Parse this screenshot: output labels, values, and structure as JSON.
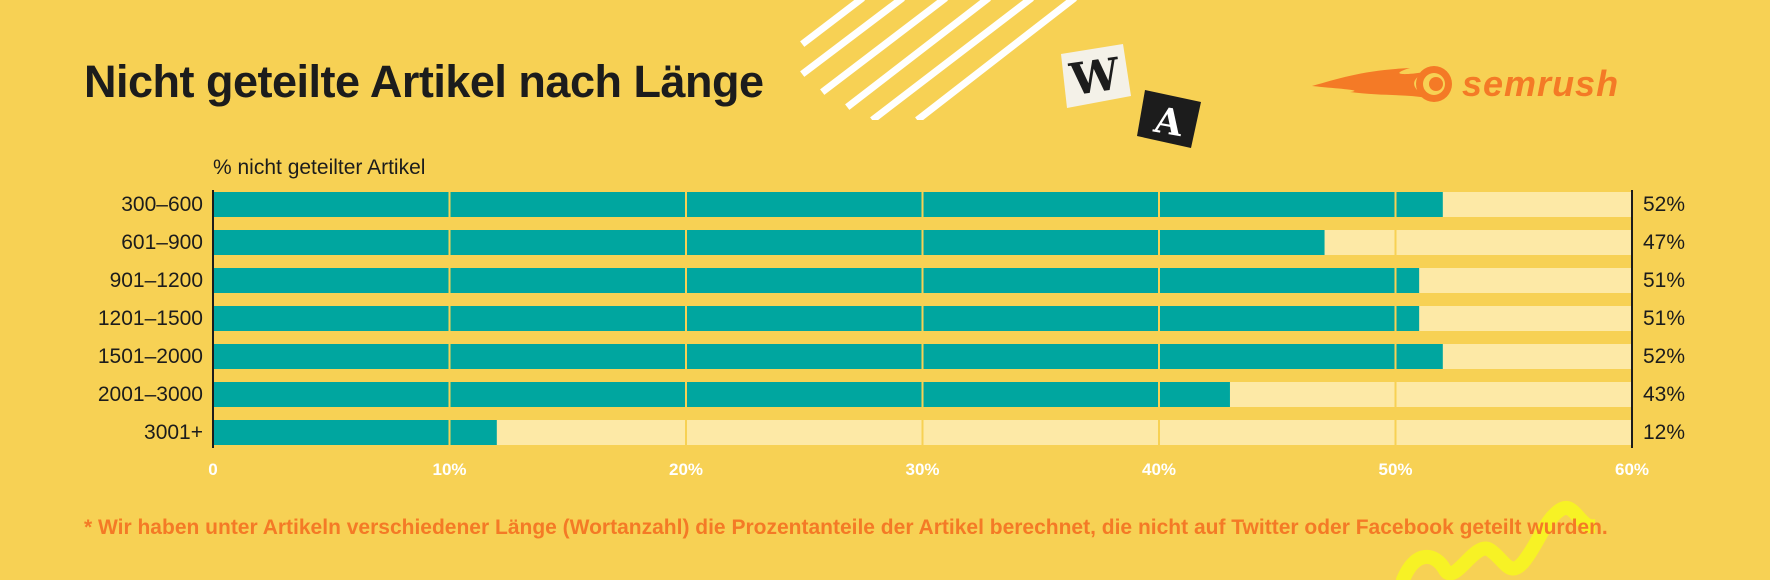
{
  "title": "Nicht geteilte Artikel nach Länge",
  "logo": {
    "text": "semrush",
    "icon": "fireball-icon"
  },
  "decor": {
    "tile_w_letter": "W",
    "tile_a_letter": "A"
  },
  "footnote": "* Wir haben unter Artikeln verschiedener Länge (Wortanzahl) die Prozentanteile der Artikel berechnet, die nicht auf Twitter oder Facebook geteilt wurden.",
  "colors": {
    "background": "#f7d154",
    "bar": "#00a69f",
    "track": "#fde9a6",
    "accent": "#f47a26",
    "axis_tick_text": "#ffffff"
  },
  "chart_data": {
    "type": "bar",
    "orientation": "horizontal",
    "ylabel": "% nicht geteilter Artikel",
    "categories": [
      "300–600",
      "601–900",
      "901–1200",
      "1201–1500",
      "1501–2000",
      "2001–3000",
      "3001+"
    ],
    "values": [
      52,
      47,
      51,
      51,
      52,
      43,
      12
    ],
    "value_labels": [
      "52%",
      "47%",
      "51%",
      "51%",
      "52%",
      "43%",
      "12%"
    ],
    "xlim": [
      0,
      60
    ],
    "x_ticks": [
      0,
      10,
      20,
      30,
      40,
      50,
      60
    ],
    "x_tick_labels": [
      "0",
      "10%",
      "20%",
      "30%",
      "40%",
      "50%",
      "60%"
    ],
    "grid": true,
    "legend": "none"
  }
}
